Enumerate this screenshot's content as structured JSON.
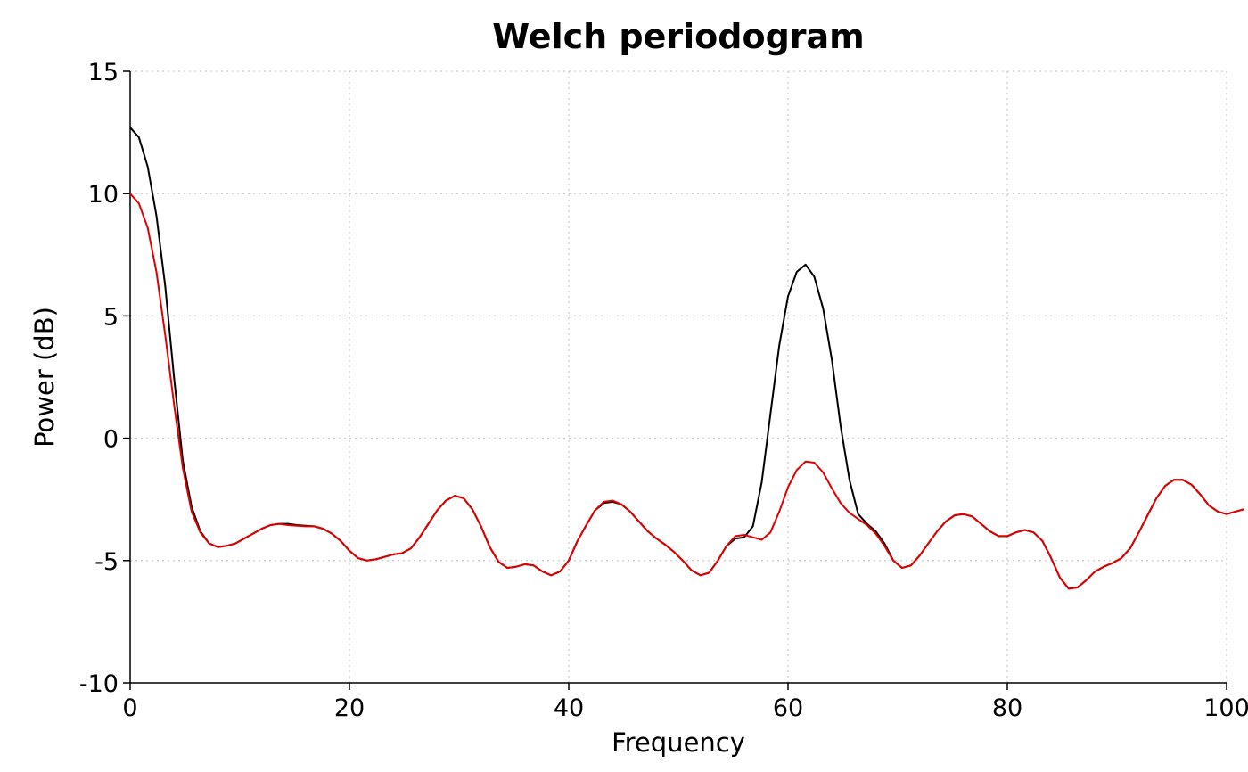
{
  "chart_data": {
    "type": "line",
    "title": "Welch periodogram",
    "xlabel": "Frequency",
    "ylabel": "Power (dB)",
    "xlim": [
      0,
      100
    ],
    "ylim": [
      -10,
      15
    ],
    "xticks": [
      0,
      20,
      40,
      60,
      80,
      100
    ],
    "yticks": [
      -10,
      -5,
      0,
      5,
      10,
      15
    ],
    "grid": true,
    "series": [
      {
        "color": "#000000",
        "points": [
          [
            0,
            12.7
          ],
          [
            0.8,
            12.3
          ],
          [
            1.6,
            11.1
          ],
          [
            2.4,
            9.1
          ],
          [
            3.2,
            6.2
          ],
          [
            4.0,
            2.5
          ],
          [
            4.8,
            -0.9
          ],
          [
            5.6,
            -2.8
          ],
          [
            6.4,
            -3.8
          ],
          [
            7.2,
            -4.3
          ],
          [
            8.0,
            -4.45
          ],
          [
            8.8,
            -4.4
          ],
          [
            9.6,
            -4.3
          ],
          [
            10.4,
            -4.1
          ],
          [
            11.2,
            -3.9
          ],
          [
            12.0,
            -3.7
          ],
          [
            12.8,
            -3.55
          ],
          [
            13.6,
            -3.5
          ],
          [
            14.4,
            -3.5
          ],
          [
            15.2,
            -3.55
          ],
          [
            16.0,
            -3.58
          ],
          [
            16.8,
            -3.6
          ],
          [
            17.6,
            -3.7
          ],
          [
            18.4,
            -3.9
          ],
          [
            19.2,
            -4.2
          ],
          [
            20.0,
            -4.6
          ],
          [
            20.8,
            -4.9
          ],
          [
            21.6,
            -5.0
          ],
          [
            22.4,
            -4.95
          ],
          [
            23.2,
            -4.85
          ],
          [
            24.0,
            -4.75
          ],
          [
            24.8,
            -4.7
          ],
          [
            25.6,
            -4.5
          ],
          [
            26.4,
            -4.05
          ],
          [
            27.2,
            -3.5
          ],
          [
            28.0,
            -2.95
          ],
          [
            28.8,
            -2.55
          ],
          [
            29.6,
            -2.35
          ],
          [
            30.4,
            -2.45
          ],
          [
            31.2,
            -2.9
          ],
          [
            32.0,
            -3.6
          ],
          [
            32.8,
            -4.45
          ],
          [
            33.6,
            -5.05
          ],
          [
            34.4,
            -5.3
          ],
          [
            35.2,
            -5.25
          ],
          [
            36.0,
            -5.15
          ],
          [
            36.8,
            -5.2
          ],
          [
            37.6,
            -5.45
          ],
          [
            38.4,
            -5.6
          ],
          [
            39.2,
            -5.45
          ],
          [
            40.0,
            -5.0
          ],
          [
            40.8,
            -4.2
          ],
          [
            41.6,
            -3.55
          ],
          [
            42.4,
            -2.95
          ],
          [
            43.2,
            -2.65
          ],
          [
            44.0,
            -2.6
          ],
          [
            44.8,
            -2.7
          ],
          [
            45.6,
            -3.0
          ],
          [
            46.4,
            -3.4
          ],
          [
            47.2,
            -3.8
          ],
          [
            48.0,
            -4.1
          ],
          [
            48.8,
            -4.35
          ],
          [
            49.6,
            -4.65
          ],
          [
            50.4,
            -5.0
          ],
          [
            51.2,
            -5.4
          ],
          [
            52.0,
            -5.6
          ],
          [
            52.8,
            -5.5
          ],
          [
            53.6,
            -5.0
          ],
          [
            54.4,
            -4.4
          ],
          [
            55.2,
            -4.1
          ],
          [
            56.0,
            -4.05
          ],
          [
            56.8,
            -3.6
          ],
          [
            57.6,
            -1.8
          ],
          [
            58.4,
            1.0
          ],
          [
            59.2,
            3.8
          ],
          [
            60.0,
            5.8
          ],
          [
            60.8,
            6.8
          ],
          [
            61.6,
            7.1
          ],
          [
            62.4,
            6.6
          ],
          [
            63.2,
            5.3
          ],
          [
            64.0,
            3.2
          ],
          [
            64.8,
            0.5
          ],
          [
            65.6,
            -1.7
          ],
          [
            66.4,
            -3.1
          ],
          [
            67.2,
            -3.5
          ],
          [
            68.0,
            -3.8
          ],
          [
            68.8,
            -4.3
          ],
          [
            69.6,
            -5.0
          ],
          [
            70.4,
            -5.3
          ],
          [
            71.2,
            -5.2
          ],
          [
            72.0,
            -4.8
          ],
          [
            72.8,
            -4.3
          ],
          [
            73.6,
            -3.8
          ],
          [
            74.4,
            -3.4
          ],
          [
            75.2,
            -3.15
          ],
          [
            76.0,
            -3.1
          ],
          [
            76.8,
            -3.2
          ],
          [
            77.6,
            -3.5
          ],
          [
            78.4,
            -3.8
          ],
          [
            79.2,
            -4.0
          ],
          [
            80.0,
            -4.0
          ],
          [
            80.8,
            -3.85
          ],
          [
            81.6,
            -3.75
          ],
          [
            82.4,
            -3.85
          ],
          [
            83.2,
            -4.2
          ],
          [
            84.0,
            -4.9
          ],
          [
            84.8,
            -5.7
          ],
          [
            85.6,
            -6.15
          ],
          [
            86.4,
            -6.1
          ],
          [
            87.2,
            -5.8
          ],
          [
            88.0,
            -5.45
          ],
          [
            88.8,
            -5.25
          ],
          [
            89.6,
            -5.1
          ],
          [
            90.4,
            -4.9
          ],
          [
            91.2,
            -4.5
          ],
          [
            92.0,
            -3.85
          ],
          [
            92.8,
            -3.15
          ],
          [
            93.6,
            -2.45
          ],
          [
            94.4,
            -1.95
          ],
          [
            95.2,
            -1.7
          ],
          [
            96.0,
            -1.7
          ],
          [
            96.8,
            -1.9
          ],
          [
            97.6,
            -2.3
          ],
          [
            98.4,
            -2.75
          ],
          [
            99.2,
            -3.0
          ],
          [
            100.0,
            -3.1
          ],
          [
            100.8,
            -3.0
          ],
          [
            101.6,
            -2.9
          ]
        ]
      },
      {
        "color": "#e00000",
        "points": [
          [
            0,
            10.0
          ],
          [
            0.8,
            9.6
          ],
          [
            1.6,
            8.6
          ],
          [
            2.4,
            6.8
          ],
          [
            3.2,
            4.2
          ],
          [
            4.0,
            1.4
          ],
          [
            4.8,
            -1.2
          ],
          [
            5.6,
            -3.0
          ],
          [
            6.4,
            -3.85
          ],
          [
            7.2,
            -4.3
          ],
          [
            8.0,
            -4.45
          ],
          [
            8.8,
            -4.4
          ],
          [
            9.6,
            -4.3
          ],
          [
            10.4,
            -4.1
          ],
          [
            11.2,
            -3.9
          ],
          [
            12.0,
            -3.7
          ],
          [
            12.8,
            -3.55
          ],
          [
            13.6,
            -3.5
          ],
          [
            14.4,
            -3.55
          ],
          [
            15.2,
            -3.58
          ],
          [
            16.0,
            -3.6
          ],
          [
            16.8,
            -3.6
          ],
          [
            17.6,
            -3.7
          ],
          [
            18.4,
            -3.9
          ],
          [
            19.2,
            -4.2
          ],
          [
            20.0,
            -4.6
          ],
          [
            20.8,
            -4.9
          ],
          [
            21.6,
            -5.0
          ],
          [
            22.4,
            -4.95
          ],
          [
            23.2,
            -4.85
          ],
          [
            24.0,
            -4.75
          ],
          [
            24.8,
            -4.7
          ],
          [
            25.6,
            -4.5
          ],
          [
            26.4,
            -4.05
          ],
          [
            27.2,
            -3.5
          ],
          [
            28.0,
            -2.95
          ],
          [
            28.8,
            -2.55
          ],
          [
            29.6,
            -2.35
          ],
          [
            30.4,
            -2.45
          ],
          [
            31.2,
            -2.9
          ],
          [
            32.0,
            -3.6
          ],
          [
            32.8,
            -4.45
          ],
          [
            33.6,
            -5.05
          ],
          [
            34.4,
            -5.3
          ],
          [
            35.2,
            -5.25
          ],
          [
            36.0,
            -5.15
          ],
          [
            36.8,
            -5.2
          ],
          [
            37.6,
            -5.45
          ],
          [
            38.4,
            -5.6
          ],
          [
            39.2,
            -5.45
          ],
          [
            40.0,
            -5.0
          ],
          [
            40.8,
            -4.2
          ],
          [
            41.6,
            -3.55
          ],
          [
            42.4,
            -2.95
          ],
          [
            43.2,
            -2.6
          ],
          [
            44.0,
            -2.55
          ],
          [
            44.8,
            -2.7
          ],
          [
            45.6,
            -3.0
          ],
          [
            46.4,
            -3.4
          ],
          [
            47.2,
            -3.8
          ],
          [
            48.0,
            -4.1
          ],
          [
            48.8,
            -4.35
          ],
          [
            49.6,
            -4.65
          ],
          [
            50.4,
            -5.0
          ],
          [
            51.2,
            -5.4
          ],
          [
            52.0,
            -5.6
          ],
          [
            52.8,
            -5.5
          ],
          [
            53.6,
            -5.0
          ],
          [
            54.4,
            -4.4
          ],
          [
            55.2,
            -4.0
          ],
          [
            56.0,
            -3.95
          ],
          [
            56.8,
            -4.05
          ],
          [
            57.6,
            -4.15
          ],
          [
            58.4,
            -3.85
          ],
          [
            59.2,
            -3.0
          ],
          [
            60.0,
            -2.0
          ],
          [
            60.8,
            -1.3
          ],
          [
            61.6,
            -0.95
          ],
          [
            62.4,
            -1.0
          ],
          [
            63.2,
            -1.4
          ],
          [
            64.0,
            -2.05
          ],
          [
            64.8,
            -2.65
          ],
          [
            65.6,
            -3.05
          ],
          [
            66.4,
            -3.3
          ],
          [
            67.2,
            -3.55
          ],
          [
            68.0,
            -3.9
          ],
          [
            68.8,
            -4.4
          ],
          [
            69.6,
            -5.0
          ],
          [
            70.4,
            -5.3
          ],
          [
            71.2,
            -5.2
          ],
          [
            72.0,
            -4.8
          ],
          [
            72.8,
            -4.3
          ],
          [
            73.6,
            -3.8
          ],
          [
            74.4,
            -3.4
          ],
          [
            75.2,
            -3.15
          ],
          [
            76.0,
            -3.1
          ],
          [
            76.8,
            -3.2
          ],
          [
            77.6,
            -3.5
          ],
          [
            78.4,
            -3.8
          ],
          [
            79.2,
            -4.0
          ],
          [
            80.0,
            -4.0
          ],
          [
            80.8,
            -3.85
          ],
          [
            81.6,
            -3.75
          ],
          [
            82.4,
            -3.85
          ],
          [
            83.2,
            -4.2
          ],
          [
            84.0,
            -4.9
          ],
          [
            84.8,
            -5.7
          ],
          [
            85.6,
            -6.15
          ],
          [
            86.4,
            -6.1
          ],
          [
            87.2,
            -5.8
          ],
          [
            88.0,
            -5.45
          ],
          [
            88.8,
            -5.25
          ],
          [
            89.6,
            -5.1
          ],
          [
            90.4,
            -4.9
          ],
          [
            91.2,
            -4.5
          ],
          [
            92.0,
            -3.85
          ],
          [
            92.8,
            -3.15
          ],
          [
            93.6,
            -2.45
          ],
          [
            94.4,
            -1.95
          ],
          [
            95.2,
            -1.7
          ],
          [
            96.0,
            -1.7
          ],
          [
            96.8,
            -1.9
          ],
          [
            97.6,
            -2.3
          ],
          [
            98.4,
            -2.75
          ],
          [
            99.2,
            -3.0
          ],
          [
            100.0,
            -3.1
          ],
          [
            100.8,
            -3.0
          ],
          [
            101.6,
            -2.9
          ]
        ]
      }
    ]
  }
}
